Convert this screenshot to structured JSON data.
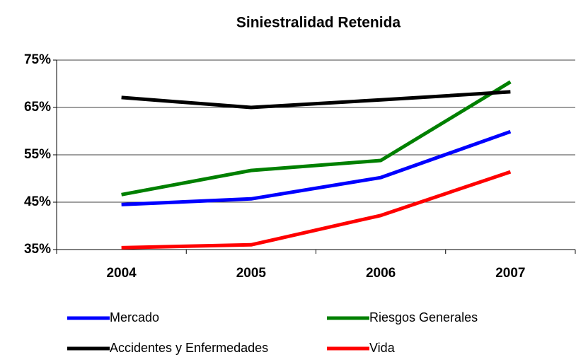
{
  "chart_data": {
    "type": "line",
    "title": "Siniestralidad Retenida",
    "categories": [
      "2004",
      "2005",
      "2006",
      "2007"
    ],
    "series": [
      {
        "name": "Mercado",
        "color": "#0000ff",
        "values": [
          44.5,
          45.7,
          50.2,
          59.9
        ]
      },
      {
        "name": "Riesgos Generales",
        "color": "#008000",
        "values": [
          46.6,
          51.7,
          53.8,
          70.4
        ]
      },
      {
        "name": "Accidentes y Enfermedades",
        "color": "#000000",
        "values": [
          67.1,
          65.0,
          66.6,
          68.3
        ]
      },
      {
        "name": "Vida",
        "color": "#ff0000",
        "values": [
          35.4,
          36.0,
          42.2,
          51.4
        ]
      }
    ],
    "ylim": [
      35,
      75
    ],
    "yticks": [
      {
        "value": 35,
        "label": "35%"
      },
      {
        "value": 45,
        "label": "45%"
      },
      {
        "value": 55,
        "label": "55%"
      },
      {
        "value": 65,
        "label": "65%"
      },
      {
        "value": 75,
        "label": "75%"
      }
    ],
    "grid": true
  }
}
